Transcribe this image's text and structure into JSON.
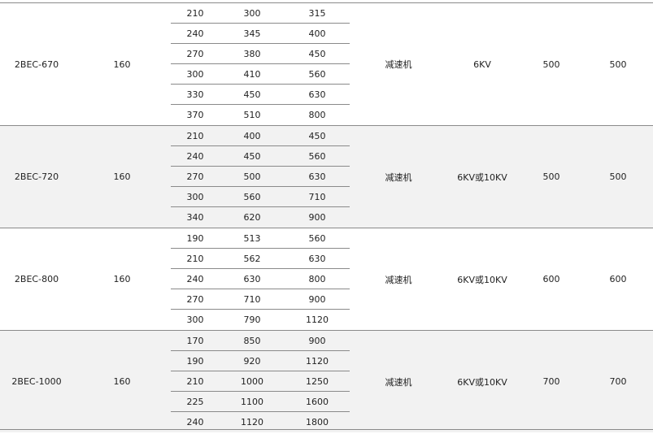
{
  "groups": [
    {
      "model": "2BEC-670",
      "col2": "160",
      "rows": [
        [
          "210",
          "300",
          "315"
        ],
        [
          "240",
          "345",
          "400"
        ],
        [
          "270",
          "380",
          "450"
        ],
        [
          "300",
          "410",
          "560"
        ],
        [
          "330",
          "450",
          "630"
        ],
        [
          "370",
          "510",
          "800"
        ]
      ],
      "drive": "减速机",
      "voltage": "6KV",
      "col7": "500",
      "col8": "500"
    },
    {
      "model": "2BEC-720",
      "col2": "160",
      "rows": [
        [
          "210",
          "400",
          "450"
        ],
        [
          "240",
          "450",
          "560"
        ],
        [
          "270",
          "500",
          "630"
        ],
        [
          "300",
          "560",
          "710"
        ],
        [
          "340",
          "620",
          "900"
        ]
      ],
      "drive": "减速机",
      "voltage": "6KV或10KV",
      "col7": "500",
      "col8": "500"
    },
    {
      "model": "2BEC-800",
      "col2": "160",
      "rows": [
        [
          "190",
          "513",
          "560"
        ],
        [
          "210",
          "562",
          "630"
        ],
        [
          "240",
          "630",
          "800"
        ],
        [
          "270",
          "710",
          "900"
        ],
        [
          "300",
          "790",
          "1120"
        ]
      ],
      "drive": "减速机",
      "voltage": "6KV或10KV",
      "col7": "600",
      "col8": "600"
    },
    {
      "model": "2BEC-1000",
      "col2": "160",
      "rows": [
        [
          "170",
          "850",
          "900"
        ],
        [
          "190",
          "920",
          "1120"
        ],
        [
          "210",
          "1000",
          "1250"
        ],
        [
          "225",
          "1100",
          "1600"
        ],
        [
          "240",
          "1120",
          "1800"
        ]
      ],
      "drive": "减速机",
      "voltage": "6KV或10KV",
      "col7": "700",
      "col8": "700"
    }
  ]
}
